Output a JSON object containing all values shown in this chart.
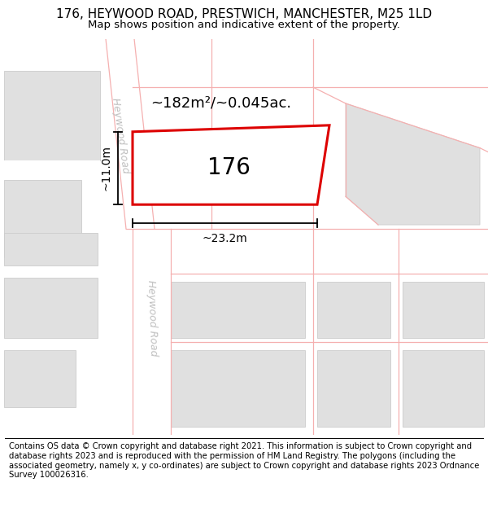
{
  "title": "176, HEYWOOD ROAD, PRESTWICH, MANCHESTER, M25 1LD",
  "subtitle": "Map shows position and indicative extent of the property.",
  "footer": "Contains OS data © Crown copyright and database right 2021. This information is subject to Crown copyright and database rights 2023 and is reproduced with the permission of HM Land Registry. The polygons (including the associated geometry, namely x, y co-ordinates) are subject to Crown copyright and database rights 2023 Ordnance Survey 100026316.",
  "highlight_color": "#dd0000",
  "block_color": "#e0e0e0",
  "block_edge_color": "#cccccc",
  "road_line_color": "#f5b0b0",
  "road_label_color": "#c0c0c0",
  "label_176": "176",
  "area_label": "~182m²/~0.045ac.",
  "width_label": "~23.2m",
  "height_label": "~11.0m",
  "road_label": "Heywood Road",
  "title_fontsize": 11,
  "subtitle_fontsize": 9.5,
  "footer_fontsize": 7.2,
  "map_label_fontsize": 13,
  "dim_fontsize": 10,
  "prop_label_fontsize": 20
}
